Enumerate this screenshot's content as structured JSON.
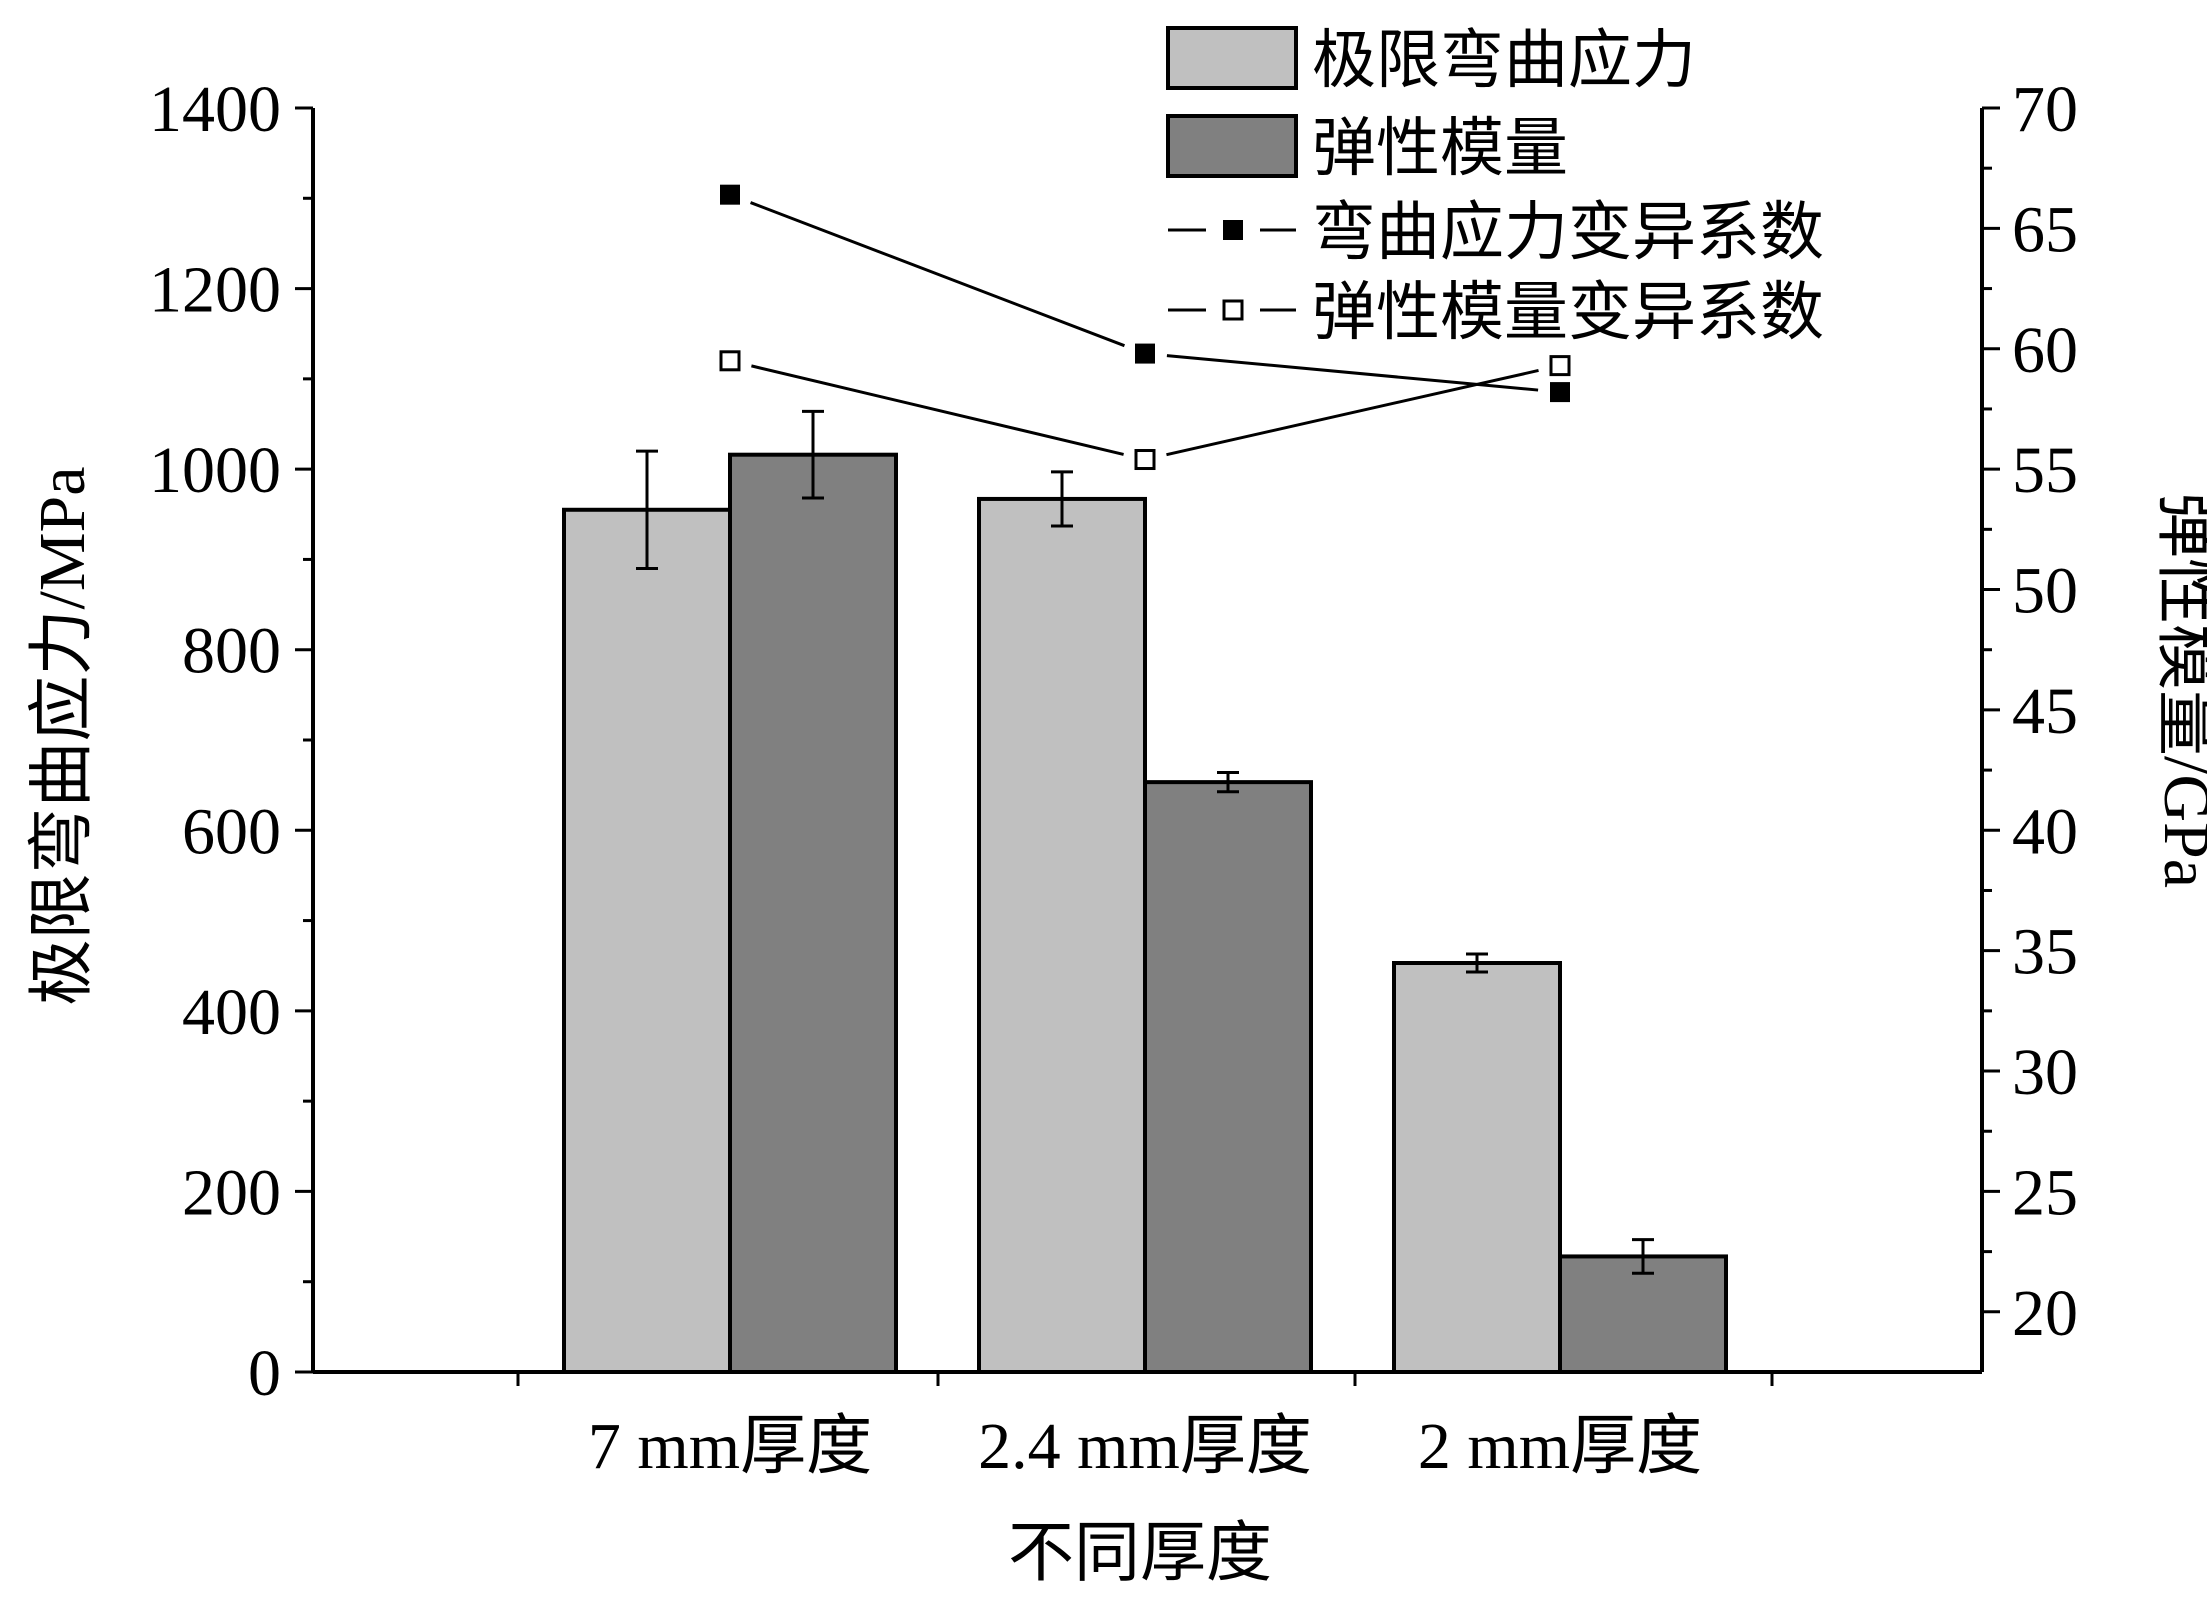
{
  "chart_data": {
    "type": "bar",
    "categories": [
      "7 mm厚度",
      "2.4 mm厚度",
      "2 mm厚度"
    ],
    "xlabel": "不同厚度",
    "ylabel_left": "极限弯曲应力/MPa",
    "ylabel_right": "弹性模量/GPa",
    "ylim_left": [
      0,
      1400
    ],
    "ylim_right": [
      17.5,
      70
    ],
    "left_ticks": [
      "0",
      "200",
      "400",
      "600",
      "800",
      "1000",
      "1200",
      "1400"
    ],
    "right_ticks": [
      "20",
      "25",
      "30",
      "35",
      "40",
      "45",
      "50",
      "55",
      "60",
      "65",
      "70"
    ],
    "series": [
      {
        "name": "极限弯曲应力",
        "axis": "left",
        "kind": "bar",
        "values": [
          955,
          967,
          453
        ],
        "errors": [
          65,
          30,
          10
        ],
        "color": "#c0c0c0"
      },
      {
        "name": "弹性模量",
        "axis": "right",
        "kind": "bar",
        "values": [
          55.6,
          42.0,
          22.3
        ],
        "errors": [
          1.8,
          0.4,
          0.7
        ],
        "color": "#808080"
      },
      {
        "name": "弯曲应力变异系数",
        "axis": "right",
        "kind": "line",
        "marker": "filled-square",
        "values": [
          66.4,
          59.8,
          58.2
        ],
        "color": "#000000"
      },
      {
        "name": "弹性模量变异系数",
        "axis": "right",
        "kind": "line",
        "marker": "open-square",
        "values": [
          59.5,
          55.4,
          59.3
        ],
        "color": "#000000"
      }
    ],
    "legend_position": "top-right",
    "grid": false
  }
}
